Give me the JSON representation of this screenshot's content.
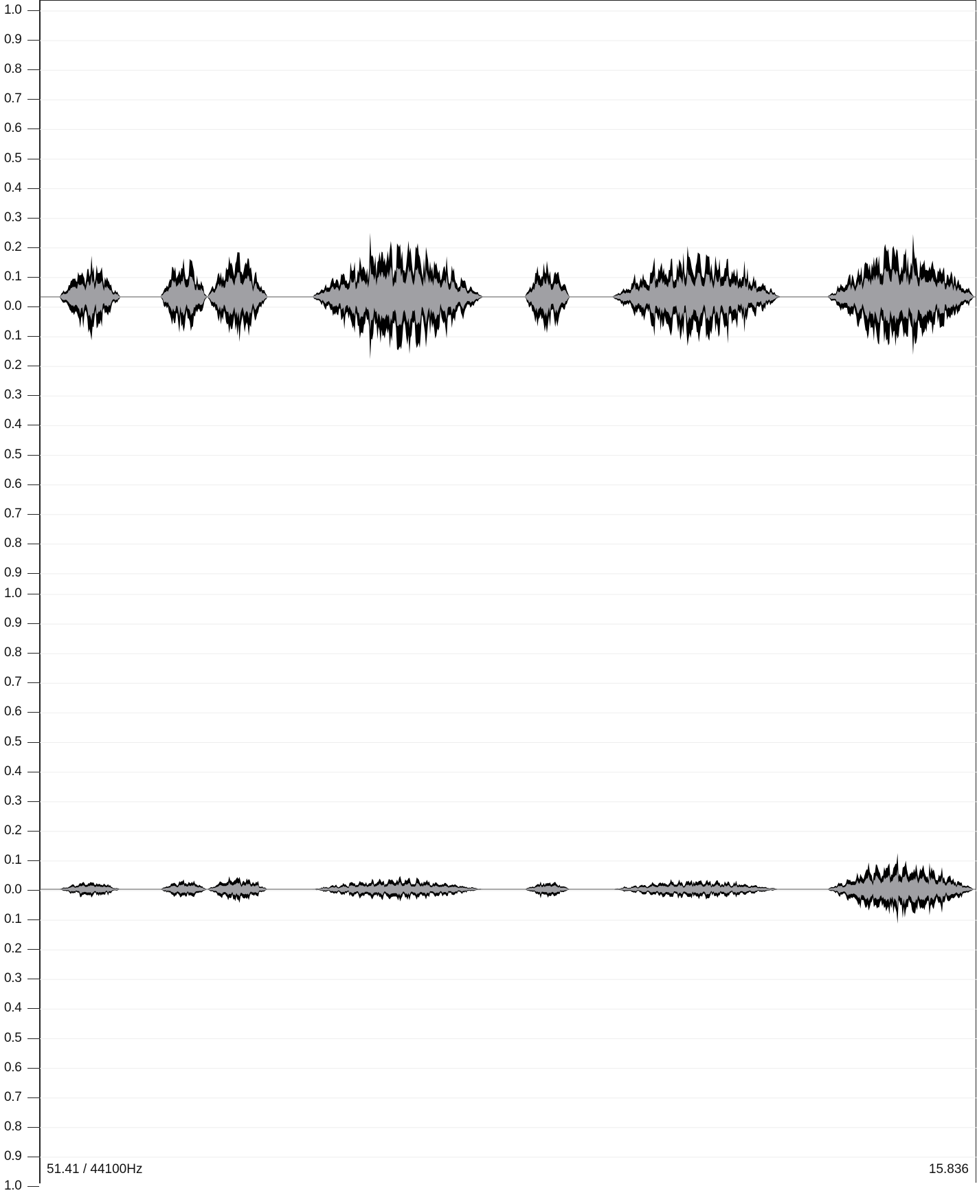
{
  "ruler": {
    "channel_top_labels": [
      "1.0",
      "0.9",
      "0.8",
      "0.7",
      "0.6",
      "0.5",
      "0.4",
      "0.3",
      "0.2",
      "0.1",
      "0.0",
      "0.1",
      "0.2",
      "0.3",
      "0.4",
      "0.5",
      "0.6",
      "0.7",
      "0.8",
      "0.9"
    ],
    "channel_bottom_labels": [
      "1.0",
      "0.9",
      "0.8",
      "0.7",
      "0.6",
      "0.5",
      "0.4",
      "0.3",
      "0.2",
      "0.1",
      "0.0",
      "0.1",
      "0.2",
      "0.3",
      "0.4",
      "0.5",
      "0.6",
      "0.7",
      "0.8",
      "0.9",
      "1.0"
    ]
  },
  "status": {
    "left_text": "51.41 / 44100Hz",
    "right_text": "15.836"
  },
  "colors": {
    "wave_peak": "#000000",
    "wave_rms": "#a0a0a4",
    "grid": "#eeeeee",
    "axis": "#222222"
  },
  "waveform": {
    "channels": 2,
    "segments": [
      {
        "start": 0.01,
        "end": 0.075,
        "ch1_amp": 0.13,
        "ch2_amp": 0.03
      },
      {
        "start": 0.118,
        "end": 0.168,
        "ch1_amp": 0.15,
        "ch2_amp": 0.035
      },
      {
        "start": 0.168,
        "end": 0.232,
        "ch1_amp": 0.16,
        "ch2_amp": 0.05
      },
      {
        "start": 0.28,
        "end": 0.462,
        "ch1_amp": 0.2,
        "ch2_amp": 0.04
      },
      {
        "start": 0.507,
        "end": 0.555,
        "ch1_amp": 0.14,
        "ch2_amp": 0.03
      },
      {
        "start": 0.6,
        "end": 0.78,
        "ch1_amp": 0.16,
        "ch2_amp": 0.035
      },
      {
        "start": 0.83,
        "end": 1.0,
        "ch1_amp": 0.19,
        "ch2_amp": 0.1
      }
    ]
  }
}
